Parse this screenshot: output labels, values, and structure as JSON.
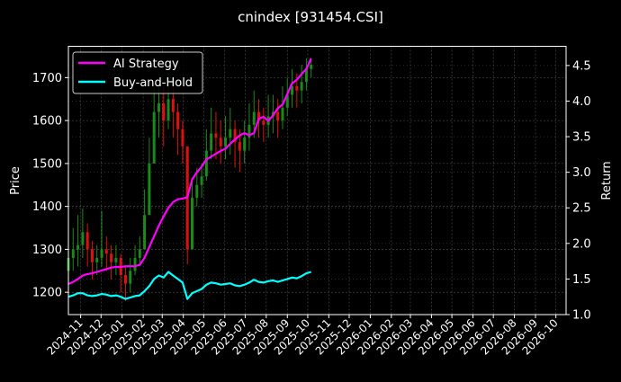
{
  "chart_data": {
    "type": "line",
    "title": "cnindex [931454.CSI]",
    "ylabel_left": "Price",
    "ylabel_right": "Return",
    "xlim": [
      "2024-10-14",
      "2026-10-16"
    ],
    "ylim_left": [
      1148,
      1773
    ],
    "ylim_right": [
      1.0,
      4.77
    ],
    "grid": true,
    "legend_position": "top-left",
    "x_ticks": [
      "2024-11",
      "2024-12",
      "2025-01",
      "2025-02",
      "2025-03",
      "2025-04",
      "2025-05",
      "2025-06",
      "2025-07",
      "2025-08",
      "2025-09",
      "2025-10",
      "2025-11",
      "2025-12",
      "2026-01",
      "2026-02",
      "2026-03",
      "2026-04",
      "2026-05",
      "2026-06",
      "2026-07",
      "2026-08",
      "2026-09",
      "2026-10"
    ],
    "y_ticks_left": [
      1200,
      1300,
      1400,
      1500,
      1600,
      1700
    ],
    "y_ticks_right": [
      "1.0",
      "1.5",
      "2.0",
      "2.5",
      "3.0",
      "3.5",
      "4.0",
      "4.5"
    ],
    "colors": {
      "up": "#1a8a1a",
      "down": "#e01010",
      "ai": "#ff00ff",
      "bh": "#00ffff",
      "grid": "#555555"
    },
    "candles": {
      "start_date": "2024-10-14",
      "interval_days": 7,
      "close": [
        1280,
        1300,
        1310,
        1340,
        1300,
        1270,
        1280,
        1300,
        1290,
        1270,
        1280,
        1240,
        1220,
        1250,
        1280,
        1300,
        1380,
        1500,
        1620,
        1640,
        1600,
        1650,
        1620,
        1580,
        1540,
        1300,
        1420,
        1450,
        1470,
        1530,
        1570,
        1560,
        1540,
        1560,
        1580,
        1550,
        1530,
        1560,
        1590,
        1620,
        1600,
        1590,
        1610,
        1620,
        1600,
        1630,
        1660,
        1680,
        1670,
        1690,
        1720,
        1730
      ],
      "high": [
        1340,
        1350,
        1380,
        1395,
        1360,
        1320,
        1310,
        1390,
        1330,
        1310,
        1310,
        1290,
        1260,
        1280,
        1310,
        1330,
        1440,
        1560,
        1680,
        1700,
        1680,
        1710,
        1690,
        1640,
        1600,
        1520,
        1460,
        1490,
        1500,
        1580,
        1630,
        1620,
        1600,
        1610,
        1630,
        1600,
        1580,
        1600,
        1640,
        1670,
        1650,
        1630,
        1660,
        1660,
        1650,
        1680,
        1700,
        1720,
        1710,
        1730,
        1745,
        1745
      ],
      "low": [
        1230,
        1250,
        1260,
        1280,
        1260,
        1230,
        1240,
        1260,
        1250,
        1230,
        1240,
        1200,
        1180,
        1200,
        1240,
        1260,
        1300,
        1400,
        1520,
        1560,
        1540,
        1580,
        1560,
        1520,
        1500,
        1265,
        1330,
        1400,
        1420,
        1460,
        1510,
        1510,
        1500,
        1510,
        1520,
        1490,
        1480,
        1500,
        1530,
        1560,
        1560,
        1550,
        1560,
        1570,
        1560,
        1580,
        1610,
        1630,
        1630,
        1640,
        1670,
        1700
      ],
      "first_open": 1250
    },
    "series": [
      {
        "name": "AI Strategy",
        "axis": "right",
        "values": [
          1.43,
          1.46,
          1.5,
          1.55,
          1.57,
          1.58,
          1.6,
          1.62,
          1.64,
          1.66,
          1.67,
          1.67,
          1.68,
          1.68,
          1.68,
          1.7,
          1.8,
          1.95,
          2.1,
          2.25,
          2.38,
          2.5,
          2.58,
          2.62,
          2.63,
          2.65,
          2.9,
          3.0,
          3.08,
          3.18,
          3.22,
          3.26,
          3.3,
          3.33,
          3.4,
          3.46,
          3.52,
          3.55,
          3.52,
          3.55,
          3.75,
          3.78,
          3.72,
          3.8,
          3.9,
          3.95,
          4.1,
          4.25,
          4.3,
          4.38,
          4.45,
          4.6
        ]
      },
      {
        "name": "Buy-and-Hold",
        "axis": "right",
        "values": [
          1.25,
          1.27,
          1.3,
          1.3,
          1.27,
          1.26,
          1.27,
          1.29,
          1.28,
          1.26,
          1.27,
          1.25,
          1.22,
          1.24,
          1.26,
          1.27,
          1.33,
          1.4,
          1.5,
          1.55,
          1.52,
          1.6,
          1.55,
          1.5,
          1.45,
          1.22,
          1.3,
          1.33,
          1.36,
          1.42,
          1.45,
          1.44,
          1.42,
          1.43,
          1.44,
          1.41,
          1.4,
          1.42,
          1.45,
          1.49,
          1.46,
          1.45,
          1.47,
          1.48,
          1.46,
          1.48,
          1.5,
          1.52,
          1.51,
          1.54,
          1.58,
          1.6
        ]
      }
    ]
  }
}
